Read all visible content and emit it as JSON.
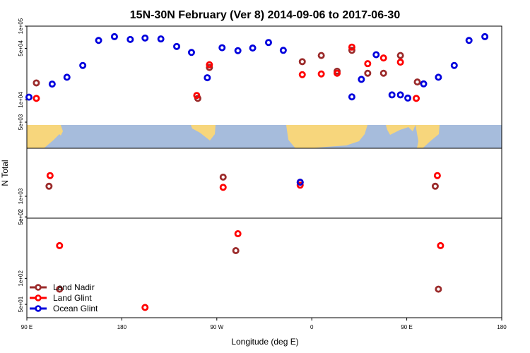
{
  "chart_data": {
    "type": "scatter",
    "title": "15N-30N February (Ver 8)   2014-09-06 to 2017-06-30",
    "xlabel": "Longitude (deg E)",
    "ylabel": "N Total",
    "x_ticks": [
      {
        "value": 90,
        "label": "90 E"
      },
      {
        "value": 180,
        "label": "180"
      },
      {
        "value": 270,
        "label": "90 W"
      },
      {
        "value": 360,
        "label": "0"
      },
      {
        "value": 450,
        "label": "90 E"
      },
      {
        "value": 540,
        "label": "180"
      }
    ],
    "xlim": [
      90,
      540
    ],
    "y_scale": "log",
    "panels": {
      "upper": {
        "ylim": [
          3150,
          100000
        ],
        "ticks": [
          {
            "value": 100000,
            "label": "1e+05"
          },
          {
            "value": 50000,
            "label": "5e+04"
          },
          {
            "value": 10000,
            "label": "1e+04"
          },
          {
            "value": 5000,
            "label": "5e+03"
          }
        ]
      },
      "middle": {
        "ylim": [
          480,
          5000
        ],
        "ticks": [
          {
            "value": 1000,
            "label": "1e+03"
          },
          {
            "value": 500,
            "label": "5e+02"
          }
        ]
      },
      "lower": {
        "ylim": [
          35,
          500
        ],
        "ticks": [
          {
            "value": 500,
            "label": "5e+02"
          },
          {
            "value": 100,
            "label": "1e+02"
          },
          {
            "value": 50,
            "label": "5e+01"
          }
        ]
      }
    },
    "legend": {
      "position": "bottom-left"
    },
    "series": [
      {
        "name": "Land Nadir",
        "color": "#9b2b2b",
        "points": [
          {
            "x": 99,
            "y": 17000
          },
          {
            "x": 111,
            "y": 1400
          },
          {
            "x": 121,
            "y": 75
          },
          {
            "x": 252,
            "y": 10500
          },
          {
            "x": 263,
            "y": 27500
          },
          {
            "x": 276,
            "y": 1900
          },
          {
            "x": 288,
            "y": 210
          },
          {
            "x": 349,
            "y": 1600
          },
          {
            "x": 351,
            "y": 33000
          },
          {
            "x": 369,
            "y": 40000
          },
          {
            "x": 384,
            "y": 24500
          },
          {
            "x": 398,
            "y": 47000
          },
          {
            "x": 413,
            "y": 23000
          },
          {
            "x": 428,
            "y": 23000
          },
          {
            "x": 444,
            "y": 40000
          },
          {
            "x": 460,
            "y": 17500
          },
          {
            "x": 477,
            "y": 1400
          },
          {
            "x": 480,
            "y": 75
          }
        ]
      },
      {
        "name": "Land Glint",
        "color": "#ff0000",
        "points": [
          {
            "x": 99,
            "y": 10500
          },
          {
            "x": 112,
            "y": 2000
          },
          {
            "x": 121,
            "y": 240
          },
          {
            "x": 202,
            "y": 46
          },
          {
            "x": 251,
            "y": 11500
          },
          {
            "x": 263,
            "y": 30000
          },
          {
            "x": 276,
            "y": 1350
          },
          {
            "x": 290,
            "y": 330
          },
          {
            "x": 349,
            "y": 1450
          },
          {
            "x": 351,
            "y": 22000
          },
          {
            "x": 369,
            "y": 22500
          },
          {
            "x": 384,
            "y": 23000
          },
          {
            "x": 398,
            "y": 52000
          },
          {
            "x": 413,
            "y": 31000
          },
          {
            "x": 428,
            "y": 37000
          },
          {
            "x": 444,
            "y": 32500
          },
          {
            "x": 459,
            "y": 10500
          },
          {
            "x": 479,
            "y": 2000
          },
          {
            "x": 482,
            "y": 240
          }
        ]
      },
      {
        "name": "Ocean Glint",
        "color": "#0000dd",
        "points": [
          {
            "x": 92,
            "y": 10900
          },
          {
            "x": 114,
            "y": 16400
          },
          {
            "x": 128,
            "y": 20300
          },
          {
            "x": 143,
            "y": 29300
          },
          {
            "x": 158,
            "y": 64000
          },
          {
            "x": 173,
            "y": 72000
          },
          {
            "x": 188,
            "y": 66000
          },
          {
            "x": 202,
            "y": 69000
          },
          {
            "x": 217,
            "y": 67000
          },
          {
            "x": 232,
            "y": 53000
          },
          {
            "x": 246,
            "y": 44000
          },
          {
            "x": 261,
            "y": 20000
          },
          {
            "x": 275,
            "y": 51000
          },
          {
            "x": 290,
            "y": 46500
          },
          {
            "x": 304,
            "y": 50500
          },
          {
            "x": 319,
            "y": 60000
          },
          {
            "x": 333,
            "y": 47000
          },
          {
            "x": 349,
            "y": 1600
          },
          {
            "x": 398,
            "y": 11000
          },
          {
            "x": 407,
            "y": 19000
          },
          {
            "x": 421,
            "y": 41000
          },
          {
            "x": 436,
            "y": 11700
          },
          {
            "x": 444,
            "y": 11700
          },
          {
            "x": 451,
            "y": 10600
          },
          {
            "x": 466,
            "y": 16500
          },
          {
            "x": 480,
            "y": 20300
          },
          {
            "x": 495,
            "y": 29300
          },
          {
            "x": 509,
            "y": 64000
          },
          {
            "x": 524,
            "y": 72000
          }
        ]
      }
    ]
  }
}
